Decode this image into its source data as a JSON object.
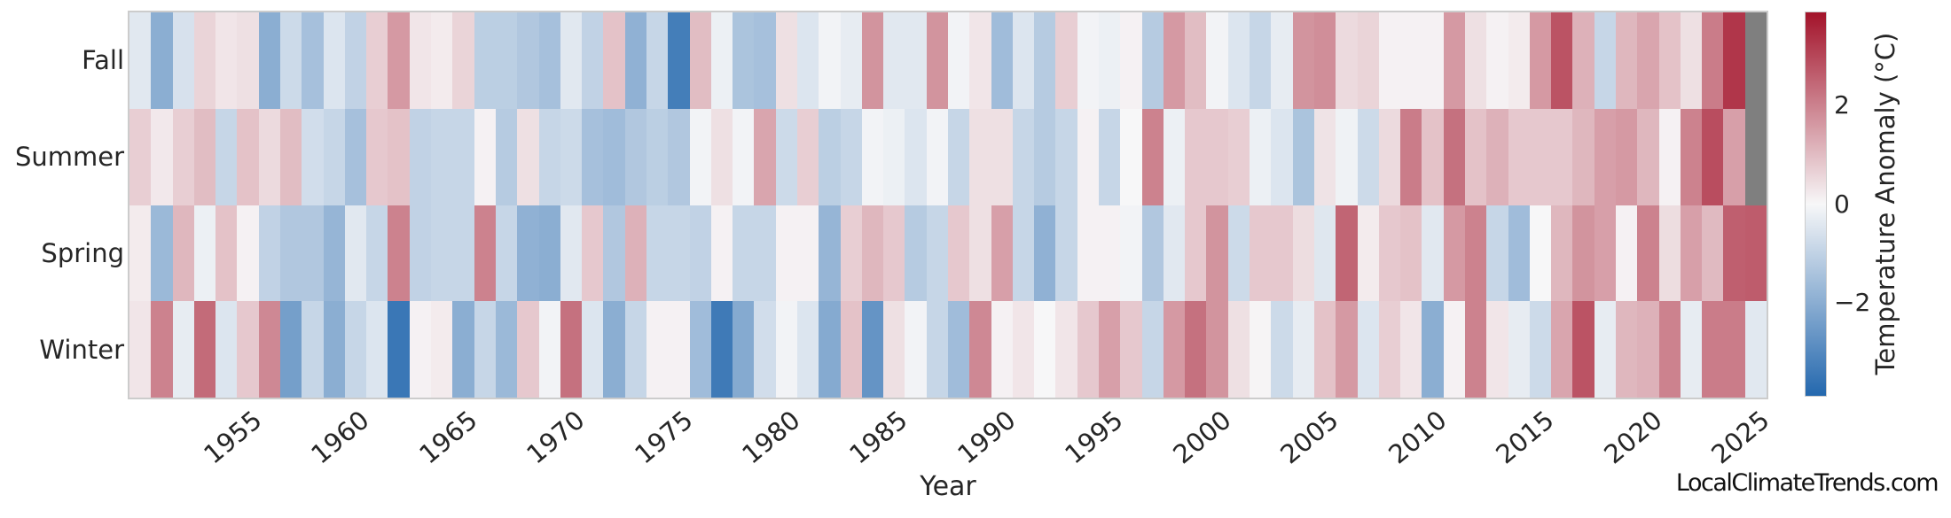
{
  "watermark": "LocalClimateTrends.com",
  "chart_data": {
    "type": "heatmap",
    "title": "",
    "xlabel": "Year",
    "ylabel": "",
    "x_start": 1950,
    "x_end": 2025,
    "xticks": [
      "1955",
      "1960",
      "1965",
      "1970",
      "1975",
      "1980",
      "1985",
      "1990",
      "1995",
      "2000",
      "2005",
      "2010",
      "2015",
      "2020",
      "2025"
    ],
    "categories": [
      "Fall",
      "Summer",
      "Spring",
      "Winter"
    ],
    "grid": false,
    "series": [
      {
        "name": "Fall",
        "values": [
          -0.4,
          -2,
          -0.6,
          0.6,
          0.3,
          0.4,
          -2,
          -0.8,
          -1.5,
          -0.5,
          -1,
          0.7,
          1.6,
          0.3,
          0.2,
          0.6,
          -1.1,
          -1.1,
          -1.3,
          -1.5,
          -0.4,
          -1,
          0.9,
          -1.9,
          -0.9,
          -3.3,
          1,
          -0.2,
          -1.4,
          -1.5,
          0.4,
          -0.5,
          -0.1,
          -0.3,
          1.7,
          -0.4,
          -0.4,
          1.7,
          -0.1,
          0.3,
          -1.6,
          -0.5,
          -1.2,
          0.7,
          -0.1,
          -0.2,
          0.1,
          -1.2,
          1.6,
          1,
          -0.1,
          -0.5,
          -0.9,
          -0.3,
          1.7,
          1.8,
          0.5,
          0.6,
          0.1,
          0.1,
          0.1,
          1.6,
          0.4,
          0.1,
          0.2,
          1.6,
          2.8,
          1.2,
          -0.9,
          1.1,
          1.4,
          0.9,
          0.4,
          2.1,
          3.3,
          null
        ]
      },
      {
        "name": "Summer",
        "values": [
          0.7,
          0.25,
          0.7,
          1,
          -0.9,
          0.9,
          0.5,
          1,
          -0.7,
          -0.9,
          -1.5,
          0.8,
          0.9,
          -1,
          -0.9,
          -0.9,
          0.1,
          -1.2,
          0.4,
          -0.9,
          -0.8,
          -1.5,
          -1.6,
          -1.3,
          -1.1,
          -1.3,
          -0.1,
          0.4,
          -0.1,
          1.4,
          -0.8,
          0.7,
          -1.1,
          -0.9,
          -0.1,
          -0.2,
          -0.5,
          -0.1,
          -0.9,
          0.4,
          0.4,
          -0.9,
          -1.2,
          -0.9,
          0.1,
          -0.9,
          0,
          2,
          -0.2,
          0.8,
          0.8,
          0.7,
          -0.2,
          -0.5,
          -1.4,
          0.35,
          -0.15,
          -0.8,
          0.5,
          2.1,
          0.9,
          2.3,
          0.9,
          1.2,
          0.8,
          0.8,
          0.8,
          1.1,
          1.5,
          1.6,
          1.1,
          0.1,
          2,
          2.9,
          1.5,
          null
        ]
      },
      {
        "name": "Spring",
        "values": [
          0.2,
          -1.7,
          1.1,
          -0.2,
          0.9,
          0.1,
          -1,
          -1.3,
          -1.3,
          -1.8,
          -0.4,
          -0.9,
          2,
          -1,
          -0.9,
          -0.9,
          2,
          -0.9,
          -1.9,
          -2,
          -0.4,
          0.8,
          -1.3,
          1.2,
          -0.9,
          -0.9,
          -1,
          0.1,
          -0.9,
          -0.9,
          0.1,
          0.1,
          -1.8,
          0.7,
          1.1,
          0.8,
          -1.2,
          -0.9,
          0.8,
          0.4,
          1.5,
          -0.9,
          -1.9,
          -0.9,
          0.1,
          0.1,
          -0.1,
          -1.3,
          -0.4,
          0.8,
          1.7,
          -0.8,
          0.8,
          0.8,
          0.45,
          -0.45,
          2.5,
          0.2,
          0.8,
          0.9,
          -0.4,
          1.6,
          2,
          -0.9,
          -1.6,
          0,
          1.1,
          1.7,
          1.5,
          0.1,
          2,
          0.45,
          1.5,
          1.05,
          2.6,
          2.65
        ]
      },
      {
        "name": "Winter",
        "values": [
          0.3,
          2,
          -0.3,
          2.4,
          -0.5,
          0.8,
          1.9,
          -2.4,
          -0.9,
          -2,
          -0.9,
          -0.5,
          -3.5,
          0.1,
          0.2,
          -2,
          -0.9,
          -1.7,
          0.8,
          -0.1,
          2.3,
          -0.5,
          -2,
          -0.9,
          0.1,
          0.1,
          -1.6,
          -3.4,
          -2.1,
          -0.7,
          -0.1,
          -0.5,
          -2.1,
          0.9,
          -2.7,
          0.4,
          -0.1,
          -0.9,
          -1.6,
          1.9,
          0.1,
          0.3,
          0,
          0.3,
          0.8,
          1.5,
          0.8,
          -0.9,
          1.6,
          2.3,
          1.7,
          0.4,
          0.05,
          -0.8,
          -0.3,
          0.9,
          1.6,
          -0.5,
          0.7,
          0.3,
          -2,
          0.1,
          2,
          0.3,
          -0.3,
          -0.8,
          1.4,
          2.8,
          -0.3,
          1.1,
          1.2,
          2,
          -0.3,
          2.1,
          2.1,
          -0.4
        ]
      }
    ],
    "colorbar": {
      "label": "Temperature Anomaly (°C)",
      "tick_labels": [
        "2",
        "0",
        "−2"
      ],
      "tick_values": [
        2,
        0,
        -2
      ],
      "vmin": -3.9,
      "vmax": 3.9,
      "color_positive": "#a3132a",
      "color_zero": "#f7f7f8",
      "color_negative": "#2468ae",
      "missing_color": "#7f7f7f"
    }
  }
}
